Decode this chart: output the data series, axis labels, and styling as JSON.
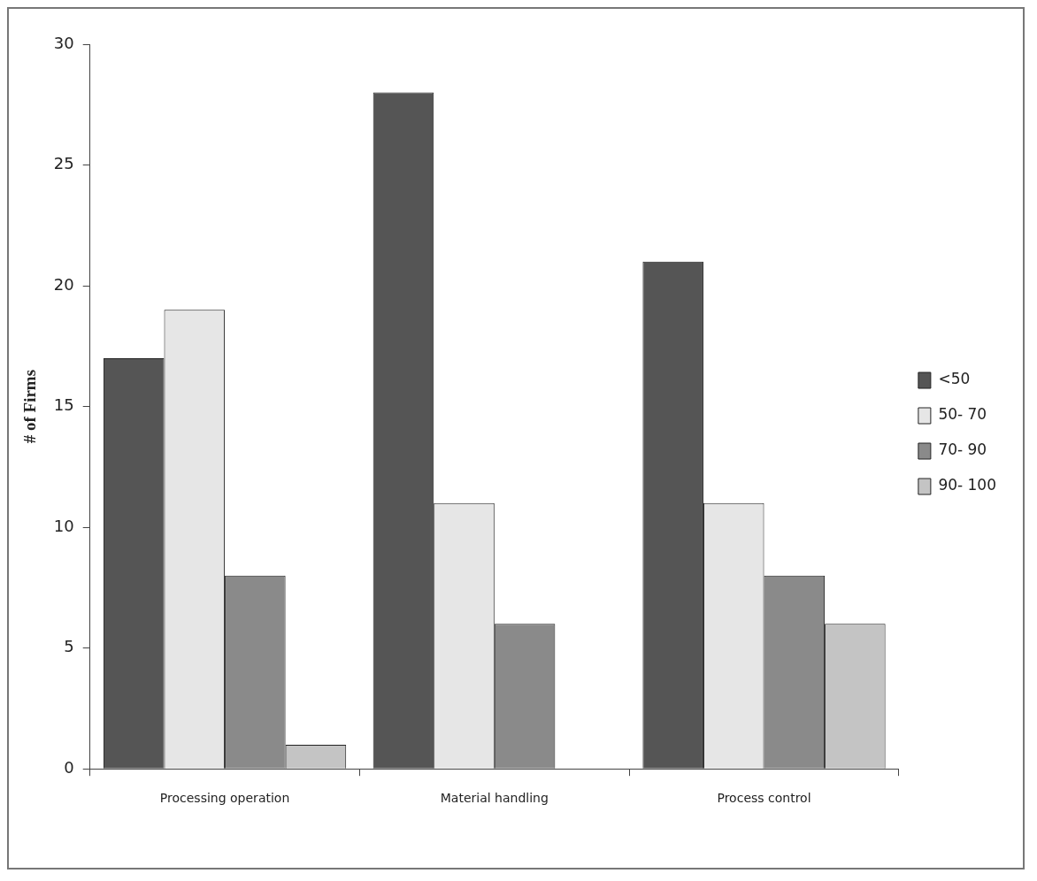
{
  "chart_data": {
    "type": "bar",
    "ylabel": "# of Firms",
    "categories": [
      "Processing operation",
      "Material handling",
      "Process control"
    ],
    "series": [
      {
        "name": "<50",
        "color": "#555555",
        "values": [
          17,
          28,
          21
        ]
      },
      {
        "name": "50- 70",
        "color": "#e6e6e6",
        "values": [
          19,
          11,
          11
        ]
      },
      {
        "name": "70- 90",
        "color": "#8a8a8a",
        "values": [
          8,
          6,
          8
        ]
      },
      {
        "name": "90- 100",
        "color": "#c4c4c4",
        "values": [
          1,
          0,
          6
        ]
      }
    ],
    "ylim": [
      0,
      30
    ],
    "yticks": [
      0,
      5,
      10,
      15,
      20,
      25,
      30
    ],
    "grid": false,
    "legend": "right"
  }
}
